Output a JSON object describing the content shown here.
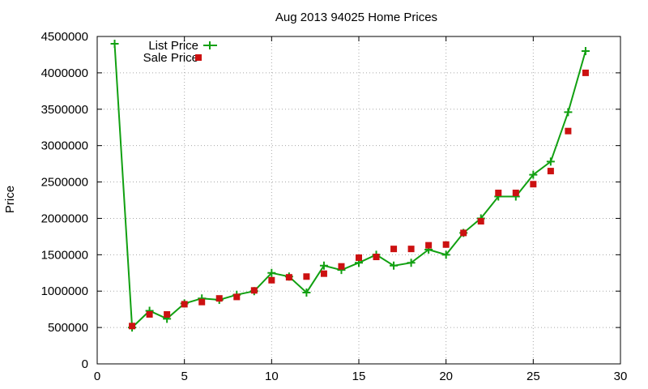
{
  "chart_data": {
    "type": "line",
    "title": "Aug 2013 94025 Home Prices",
    "xlabel": "",
    "ylabel": "Price",
    "xlim": [
      0,
      30
    ],
    "ylim": [
      0,
      4500000
    ],
    "x_ticks": [
      0,
      5,
      10,
      15,
      20,
      25,
      30
    ],
    "y_ticks": [
      0,
      500000,
      1000000,
      1500000,
      2000000,
      2500000,
      3000000,
      3500000,
      4000000,
      4500000
    ],
    "grid": true,
    "legend_position": "top-left",
    "series": [
      {
        "name": "List Price",
        "style": "line+plus",
        "color": "#11a011",
        "x": [
          1,
          2,
          3,
          4,
          5,
          6,
          7,
          8,
          9,
          10,
          11,
          12,
          13,
          14,
          15,
          16,
          17,
          18,
          19,
          20,
          21,
          22,
          23,
          24,
          25,
          26,
          27,
          28
        ],
        "values": [
          4400000,
          500000,
          730000,
          620000,
          830000,
          900000,
          880000,
          950000,
          1000000,
          1250000,
          1200000,
          980000,
          1350000,
          1290000,
          1390000,
          1500000,
          1350000,
          1390000,
          1570000,
          1500000,
          1800000,
          2000000,
          2300000,
          2300000,
          2600000,
          2780000,
          3460000,
          4300000
        ]
      },
      {
        "name": "Sale Price",
        "style": "square-marker",
        "color": "#cc1111",
        "x": [
          2,
          3,
          4,
          5,
          6,
          7,
          8,
          9,
          10,
          11,
          12,
          13,
          14,
          15,
          16,
          17,
          18,
          19,
          20,
          21,
          22,
          23,
          24,
          25,
          26,
          27,
          28
        ],
        "values": [
          520000,
          680000,
          680000,
          820000,
          850000,
          900000,
          920000,
          1010000,
          1150000,
          1190000,
          1200000,
          1240000,
          1340000,
          1460000,
          1470000,
          1580000,
          1580000,
          1630000,
          1640000,
          1800000,
          1960000,
          2350000,
          2350000,
          2470000,
          2650000,
          3200000,
          4000000
        ]
      }
    ]
  }
}
